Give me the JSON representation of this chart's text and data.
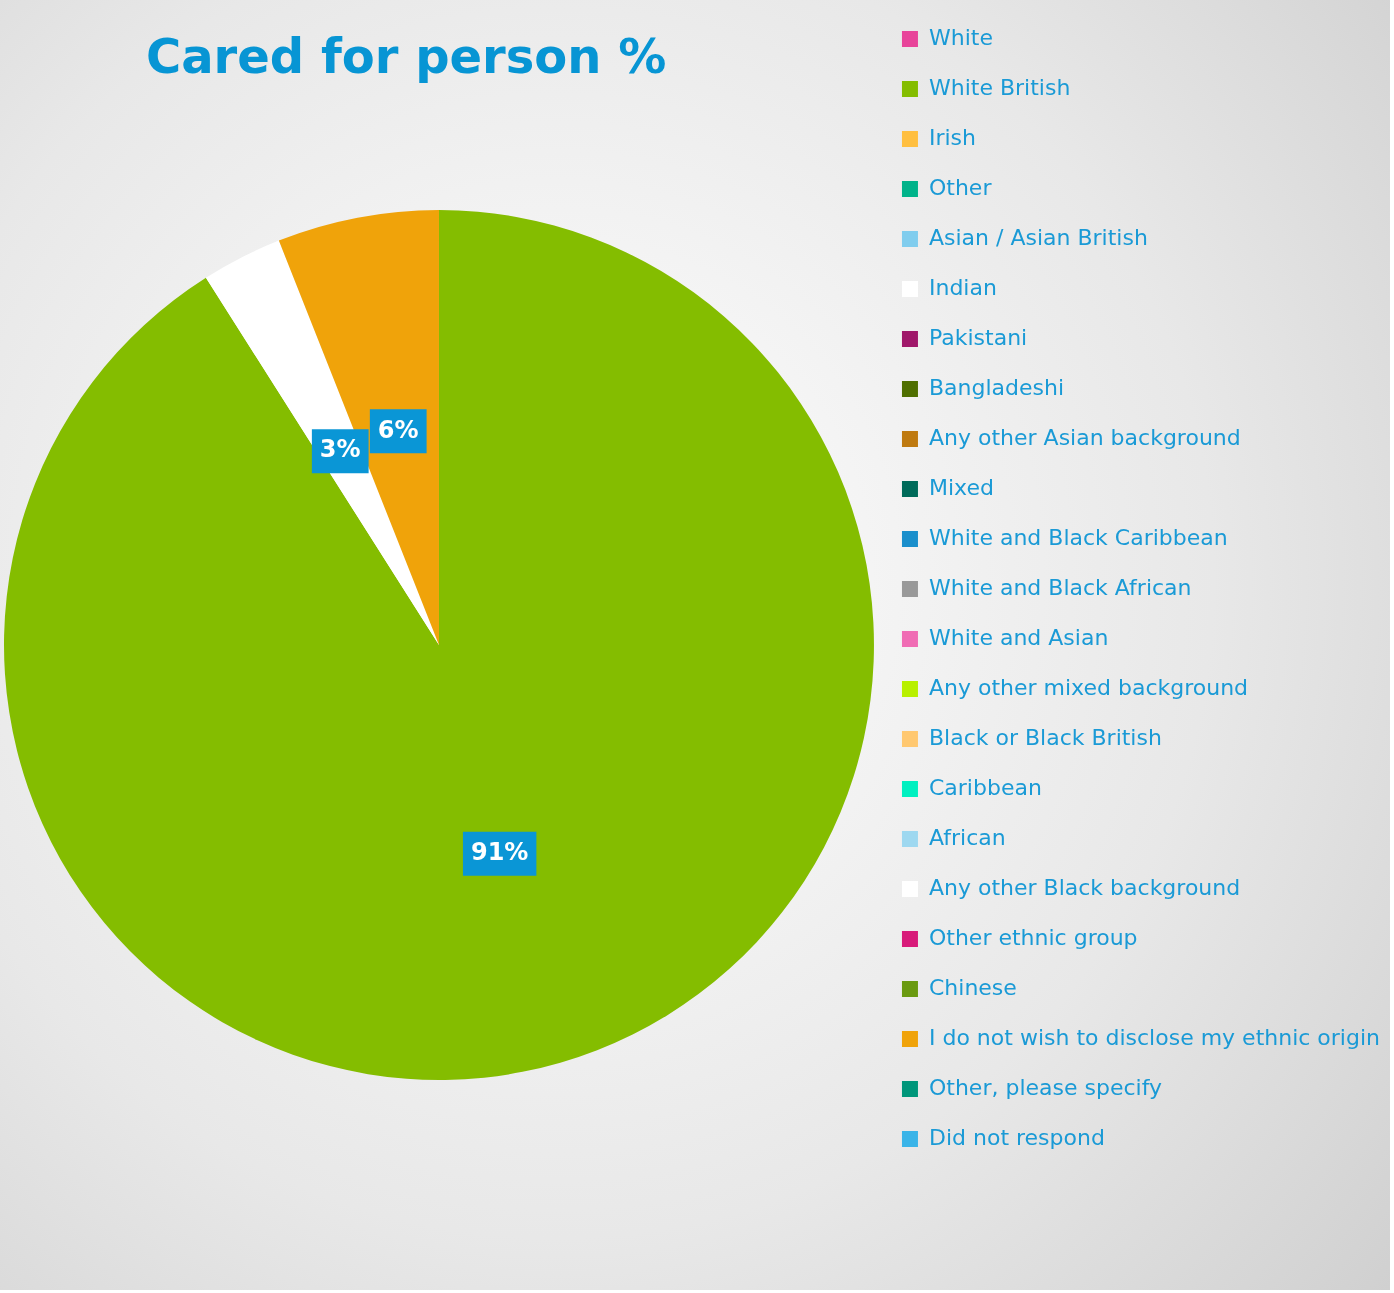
{
  "chart_data": {
    "type": "pie",
    "title": "Cared for person %",
    "categories": [
      "White",
      "White British",
      "Irish",
      "Other",
      "Asian / Asian British",
      "Indian",
      "Pakistani",
      "Bangladeshi",
      "Any other Asian background",
      "Mixed",
      "White and Black Caribbean",
      "White and Black African",
      "White and Asian",
      "Any other mixed background",
      "Black or Black British",
      "Caribbean",
      "African",
      "Any other Black background",
      "Other ethnic group",
      "Chinese",
      "I do not wish to disclose my ethnic origin",
      "Other, please specify",
      "Did not respond"
    ],
    "values": [
      0,
      91,
      0,
      0,
      0,
      3,
      0,
      0,
      0,
      0,
      0,
      0,
      0,
      0,
      0,
      0,
      0,
      0,
      0,
      0,
      6,
      0,
      0
    ],
    "value_labels": [
      null,
      "91%",
      null,
      null,
      null,
      "3%",
      null,
      null,
      null,
      null,
      null,
      null,
      null,
      null,
      null,
      null,
      null,
      null,
      null,
      null,
      "6%",
      null,
      null
    ],
    "colors": [
      "#e8449a",
      "#84bd00",
      "#ffbf40",
      "#00b38a",
      "#80cdee",
      "#ffffff",
      "#a0186a",
      "#4f6f00",
      "#bf7a10",
      "#006b5a",
      "#1a8fcc",
      "#999999",
      "#f06cb4",
      "#b8f000",
      "#ffc870",
      "#00f0c0",
      "#9ed8f0",
      "#ffffff",
      "#d81b7a",
      "#6a9a10",
      "#f0a30a",
      "#00967a",
      "#3ab4e8"
    ],
    "legend": "right"
  }
}
